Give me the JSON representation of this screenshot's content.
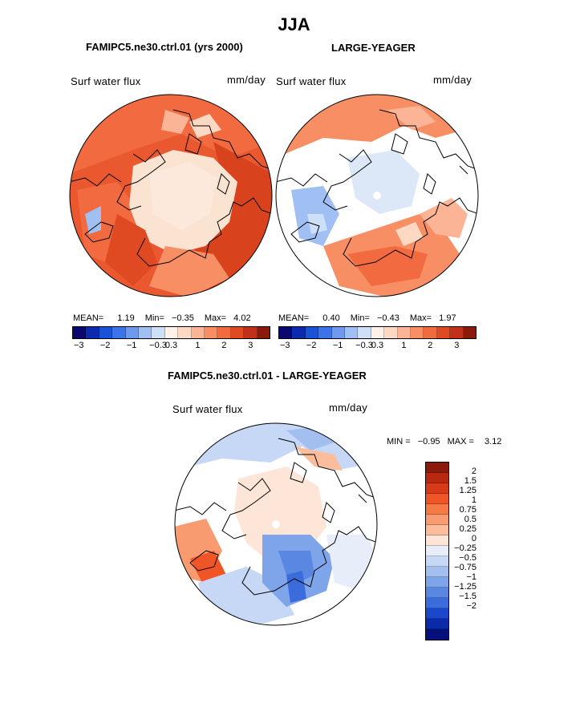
{
  "figure": {
    "title": "JJA"
  },
  "panels": [
    {
      "title": "FAMIPC5.ne30.ctrl.01 (yrs 2000)",
      "variable": "Surf water flux",
      "units": "mm/day",
      "stats": {
        "mean_label": "MEAN=",
        "mean": "1.19",
        "min_label": "Min=",
        "min": "−0.35",
        "max_label": "Max=",
        "max": "4.02"
      }
    },
    {
      "title": "LARGE-YEAGER",
      "variable": "Surf water flux",
      "units": "mm/day",
      "stats": {
        "mean_label": "MEAN=",
        "mean": "0.40",
        "min_label": "Min=",
        "min": "−0.43",
        "max_label": "Max=",
        "max": "1.97"
      }
    },
    {
      "title": "FAMIPC5.ne30.ctrl.01 - LARGE-YEAGER",
      "variable": "Surf water flux",
      "units": "mm/day",
      "stats": {
        "min_label": "MIN =",
        "min": "−0.95",
        "max_label": "MAX =",
        "max": "3.12"
      }
    }
  ],
  "colorbar_top": {
    "colors": [
      "#08086e",
      "#0b2ab0",
      "#1a52d8",
      "#3d73e8",
      "#6f99ee",
      "#a0bff2",
      "#cde0f7",
      "#fff0e8",
      "#fdd9c4",
      "#fbb495",
      "#f88e64",
      "#f26a40",
      "#e04a22",
      "#c0301a",
      "#8c1a0c"
    ],
    "tick_labels": [
      "−3",
      "−2",
      "−1",
      "−0.3",
      "0.3",
      "1",
      "2",
      "3"
    ]
  },
  "colorbar_diff": {
    "colors": [
      "#8c1a0c",
      "#b8290f",
      "#d63a18",
      "#ef5526",
      "#f67a45",
      "#f99b70",
      "#fbbd9c",
      "#fde6d8",
      "#e7eefa",
      "#c6d8f5",
      "#a2bff0",
      "#7ea4ea",
      "#5a87e2",
      "#3a6cdb",
      "#1b47cc",
      "#0a2aa8",
      "#05107a"
    ],
    "tick_labels": [
      "2",
      "1.5",
      "1.25",
      "1",
      "0.75",
      "0.5",
      "0.25",
      "0",
      "−0.25",
      "−0.5",
      "−0.75",
      "−1",
      "−1.25",
      "−1.5",
      "−2"
    ]
  }
}
